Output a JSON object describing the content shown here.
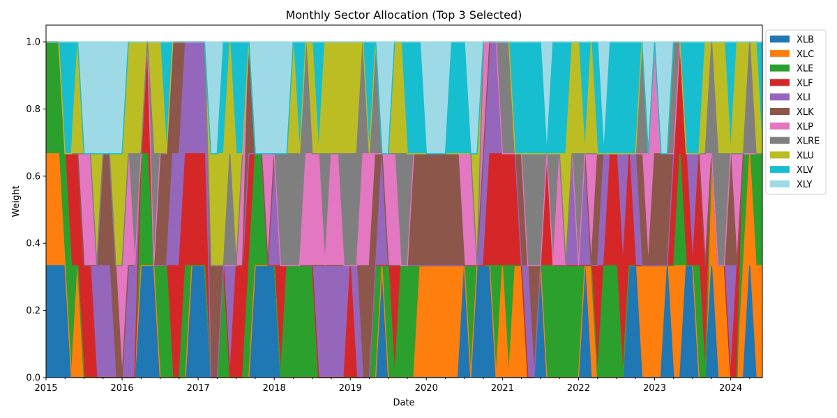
{
  "chart_data": {
    "type": "area",
    "title": "Monthly Sector Allocation (Top 3 Selected)",
    "xlabel": "Date",
    "ylabel": "Weight",
    "ylim": [
      0,
      1.05
    ],
    "xlim": [
      "2015-01",
      "2024-12"
    ],
    "x_tick_labels": [
      "2015",
      "2016",
      "2017",
      "2018",
      "2019",
      "2020",
      "2021",
      "2022",
      "2023",
      "2024"
    ],
    "y_tick_labels": [
      "0.0",
      "0.2",
      "0.4",
      "0.6",
      "0.8",
      "1.0"
    ],
    "y_ticks": [
      0,
      0.2,
      0.4,
      0.6,
      0.8,
      1.0
    ],
    "grid": false,
    "legend_position": "outside-top-right",
    "selections": [
      [
        "XLB",
        "XLC",
        "XLE"
      ],
      [
        "XLB",
        "XLC",
        "XLE"
      ],
      [
        "XLB",
        "XLC",
        "XLE"
      ],
      [
        "XLB",
        "XLE",
        "XLV"
      ],
      [
        "XLE",
        "XLF",
        "XLV"
      ],
      [
        "XLC",
        "XLF",
        "XLU"
      ],
      [
        "XLF",
        "XLP",
        "XLY"
      ],
      [
        "XLF",
        "XLP",
        "XLY"
      ],
      [
        "XLI",
        "XLU",
        "XLY"
      ],
      [
        "XLI",
        "XLK",
        "XLY"
      ],
      [
        "XLI",
        "XLK",
        "XLY"
      ],
      [
        "XLK",
        "XLU",
        "XLY"
      ],
      [
        "XLP",
        "XLU",
        "XLY"
      ],
      [
        "XLI",
        "XLP",
        "XLU"
      ],
      [
        "XLI",
        "XLRE",
        "XLU"
      ],
      [
        "XLB",
        "XLE",
        "XLU"
      ],
      [
        "XLB",
        "XLF",
        "XLE"
      ],
      [
        "XLB",
        "XLRE",
        "XLU"
      ],
      [
        "XLE",
        "XLK",
        "XLU"
      ],
      [
        "XLE",
        "XLK",
        "XLV"
      ],
      [
        "XLF",
        "XLI",
        "XLK"
      ],
      [
        "XLF",
        "XLI",
        "XLK"
      ],
      [
        "XLE",
        "XLF",
        "XLI"
      ],
      [
        "XLB",
        "XLF",
        "XLI"
      ],
      [
        "XLB",
        "XLF",
        "XLI"
      ],
      [
        "XLB",
        "XLF",
        "XLI"
      ],
      [
        "XLK",
        "XLU",
        "XLY"
      ],
      [
        "XLK",
        "XLU",
        "XLY"
      ],
      [
        "XLE",
        "XLU",
        "XLV"
      ],
      [
        "XLI",
        "XLRE",
        "XLU"
      ],
      [
        "XLF",
        "XLU",
        "XLV"
      ],
      [
        "XLF",
        "XLP",
        "XLV"
      ],
      [
        "XLF",
        "XLK",
        "XLE"
      ],
      [
        "XLB",
        "XLE",
        "XLY"
      ],
      [
        "XLB",
        "XLE",
        "XLY"
      ],
      [
        "XLB",
        "XLP",
        "XLY"
      ],
      [
        "XLB",
        "XLI",
        "XLY"
      ],
      [
        "XLF",
        "XLRE",
        "XLY"
      ],
      [
        "XLE",
        "XLRE",
        "XLY"
      ],
      [
        "XLE",
        "XLRE",
        "XLU"
      ],
      [
        "XLE",
        "XLRE",
        "XLV"
      ],
      [
        "XLE",
        "XLP",
        "XLRE"
      ],
      [
        "XLE",
        "XLP",
        "XLU"
      ],
      [
        "XLI",
        "XLP",
        "XLV"
      ],
      [
        "XLI",
        "XLRE",
        "XLU"
      ],
      [
        "XLI",
        "XLP",
        "XLU"
      ],
      [
        "XLI",
        "XLP",
        "XLU"
      ],
      [
        "XLI",
        "XLRE",
        "XLU"
      ],
      [
        "XLF",
        "XLRE",
        "XLU"
      ],
      [
        "XLI",
        "XLRE",
        "XLU"
      ],
      [
        "XLK",
        "XLP",
        "XLRE"
      ],
      [
        "XLK",
        "XLP",
        "XLV"
      ],
      [
        "XLE",
        "XLK",
        "XLRE"
      ],
      [
        "XLB",
        "XLI",
        "XLY"
      ],
      [
        "XLE",
        "XLP",
        "XLY"
      ],
      [
        "XLF",
        "XLP",
        "XLU"
      ],
      [
        "XLE",
        "XLRE",
        "XLU"
      ],
      [
        "XLE",
        "XLRE",
        "XLV"
      ],
      [
        "XLE",
        "XLK",
        "XLV"
      ],
      [
        "XLC",
        "XLK",
        "XLV"
      ],
      [
        "XLC",
        "XLK",
        "XLY"
      ],
      [
        "XLC",
        "XLK",
        "XLY"
      ],
      [
        "XLC",
        "XLK",
        "XLY"
      ],
      [
        "XLC",
        "XLK",
        "XLY"
      ],
      [
        "XLC",
        "XLK",
        "XLV"
      ],
      [
        "XLC",
        "XLK",
        "XLV"
      ],
      [
        "XLB",
        "XLP",
        "XLV"
      ],
      [
        "XLE",
        "XLP",
        "XLY"
      ],
      [
        "XLB",
        "XLU",
        "XLY"
      ],
      [
        "XLB",
        "XLP",
        "XLI"
      ],
      [
        "XLB",
        "XLF",
        "XLI"
      ],
      [
        "XLE",
        "XLF",
        "XLI"
      ],
      [
        "XLC",
        "XLF",
        "XLRE"
      ],
      [
        "XLE",
        "XLF",
        "XLRE"
      ],
      [
        "XLC",
        "XLF",
        "XLV"
      ],
      [
        "XLC",
        "XLK",
        "XLV"
      ],
      [
        "XLI",
        "XLRE",
        "XLV"
      ],
      [
        "XLK",
        "XLRE",
        "XLV"
      ],
      [
        "XLB",
        "XLRE",
        "XLV"
      ],
      [
        "XLE",
        "XLF",
        "XLY"
      ],
      [
        "XLE",
        "XLRE",
        "XLV"
      ],
      [
        "XLE",
        "XLP",
        "XLV"
      ],
      [
        "XLE",
        "XLU",
        "XLV"
      ],
      [
        "XLE",
        "XLI",
        "XLU"
      ],
      [
        "XLE",
        "XLRE",
        "XLU"
      ],
      [
        "XLB",
        "XLI",
        "XLV"
      ],
      [
        "XLC",
        "XLP",
        "XLU"
      ],
      [
        "XLF",
        "XLK",
        "XLV"
      ],
      [
        "XLE",
        "XLI",
        "XLY"
      ],
      [
        "XLE",
        "XLF",
        "XLV"
      ],
      [
        "XLE",
        "XLF",
        "XLV"
      ],
      [
        "XLF",
        "XLI",
        "XLV"
      ],
      [
        "XLB",
        "XLF",
        "XLV"
      ],
      [
        "XLB",
        "XLI",
        "XLV"
      ],
      [
        "XLC",
        "XLK",
        "XLRE"
      ],
      [
        "XLC",
        "XLP",
        "XLY"
      ],
      [
        "XLC",
        "XLK",
        "XLP"
      ],
      [
        "XLC",
        "XLK",
        "XLY"
      ],
      [
        "XLB",
        "XLK",
        "XLY"
      ],
      [
        "XLC",
        "XLF",
        "XLRE"
      ],
      [
        "XLC",
        "XLE",
        "XLF"
      ],
      [
        "XLB",
        "XLF",
        "XLV"
      ],
      [
        "XLB",
        "XLI",
        "XLV"
      ],
      [
        "XLE",
        "XLF",
        "XLV"
      ],
      [
        "XLF",
        "XLP",
        "XLU"
      ],
      [
        "XLB",
        "XLC",
        "XLRE"
      ],
      [
        "XLC",
        "XLRE",
        "XLU"
      ],
      [
        "XLC",
        "XLRE",
        "XLU"
      ],
      [
        "XLI",
        "XLK",
        "XLV"
      ],
      [
        "XLF",
        "XLP",
        "XLU"
      ],
      [
        "XLC",
        "XLE",
        "XLU"
      ],
      [
        "XLB",
        "XLC",
        "XLRE"
      ],
      [
        "XLC",
        "XLE",
        "XLU"
      ],
      [
        "XLC",
        "XLE",
        "XLV"
      ]
    ],
    "series": [
      {
        "name": "XLB",
        "color": "#1f77b4"
      },
      {
        "name": "XLC",
        "color": "#ff7f0e"
      },
      {
        "name": "XLE",
        "color": "#2ca02c"
      },
      {
        "name": "XLF",
        "color": "#d62728"
      },
      {
        "name": "XLI",
        "color": "#9467bd"
      },
      {
        "name": "XLK",
        "color": "#8c564b"
      },
      {
        "name": "XLP",
        "color": "#e377c2"
      },
      {
        "name": "XLRE",
        "color": "#7f7f7f"
      },
      {
        "name": "XLU",
        "color": "#bcbd22"
      },
      {
        "name": "XLV",
        "color": "#17becf"
      },
      {
        "name": "XLY",
        "color": "#9edae5"
      }
    ]
  }
}
